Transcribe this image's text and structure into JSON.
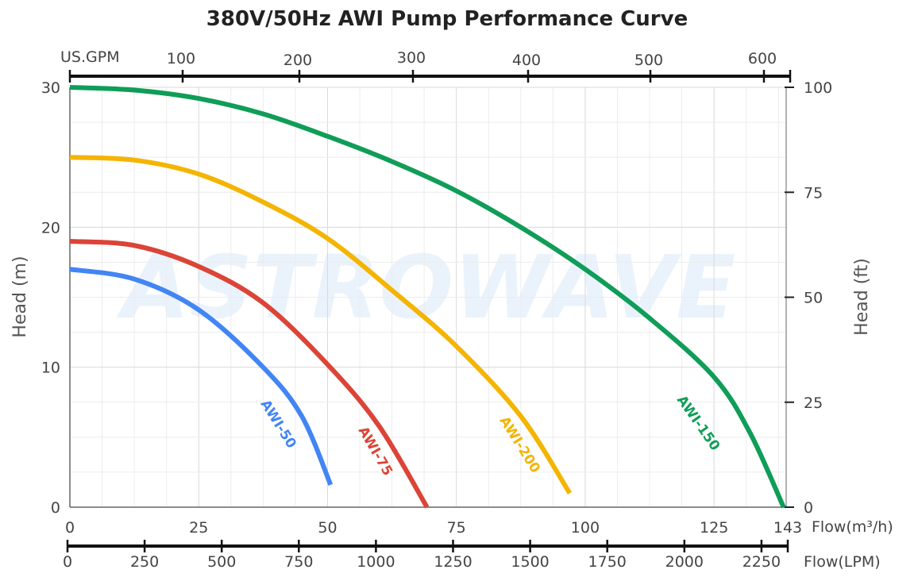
{
  "chart_data": {
    "type": "line",
    "title": "380V/50Hz AWI Pump Performance Curve",
    "xlabel": "Flow(m³/h)",
    "ylabel": "Head (m)",
    "ylabel_right": "Head (ft)",
    "xlabel_top": "US.GPM",
    "xlabel_bottom2": "Flow(LPM)",
    "xlim": [
      0,
      139
    ],
    "ylim": [
      0,
      30
    ],
    "x_ticks": [
      "0",
      "25",
      "50",
      "75",
      "100",
      "125"
    ],
    "x_tick_values": [
      0,
      25,
      50,
      75,
      100,
      125
    ],
    "x_end_label": "143",
    "y_ticks": [
      "0",
      "10",
      "20",
      "30"
    ],
    "y_tick_values": [
      0,
      10,
      20,
      30
    ],
    "y_right_ticks": [
      "0",
      "25",
      "50",
      "75",
      "100"
    ],
    "y_right_range": [
      0,
      100
    ],
    "gpm_ticks": [
      "100",
      "200",
      "300",
      "400",
      "500",
      "600"
    ],
    "lpm_ticks": [
      "0",
      "250",
      "500",
      "750",
      "1000",
      "1250",
      "1500",
      "1750",
      "2000",
      "2250"
    ],
    "grid": true,
    "watermark": "ASTROWAVE",
    "series": [
      {
        "name": "AWI-150",
        "color": "#0f9d58",
        "points": [
          [
            0,
            30
          ],
          [
            12.5,
            29.8
          ],
          [
            25,
            29.2
          ],
          [
            37.5,
            28.1
          ],
          [
            50,
            26.5
          ],
          [
            62.5,
            24.7
          ],
          [
            75,
            22.6
          ],
          [
            87.5,
            20
          ],
          [
            100,
            17
          ],
          [
            112.5,
            13.5
          ],
          [
            125,
            9.3
          ],
          [
            132,
            5.3
          ],
          [
            138.5,
            0
          ]
        ]
      },
      {
        "name": "AWI-200",
        "color": "#f4b400",
        "points": [
          [
            0,
            25
          ],
          [
            12.5,
            24.8
          ],
          [
            25,
            23.8
          ],
          [
            37.5,
            21.8
          ],
          [
            50,
            19.2
          ],
          [
            62.5,
            15.5
          ],
          [
            75,
            11.5
          ],
          [
            87.5,
            6.5
          ],
          [
            97,
            1
          ]
        ]
      },
      {
        "name": "AWI-75",
        "color": "#db4437",
        "points": [
          [
            0,
            19
          ],
          [
            12.5,
            18.7
          ],
          [
            25,
            17.2
          ],
          [
            37.5,
            14.6
          ],
          [
            50,
            10.2
          ],
          [
            60,
            5.8
          ],
          [
            69.3,
            0
          ]
        ]
      },
      {
        "name": "AWI-50",
        "color": "#4285f4",
        "points": [
          [
            0,
            17
          ],
          [
            12.5,
            16.3
          ],
          [
            25,
            14.1
          ],
          [
            37.5,
            10
          ],
          [
            45,
            6.5
          ],
          [
            50.6,
            1.6
          ]
        ]
      }
    ]
  }
}
